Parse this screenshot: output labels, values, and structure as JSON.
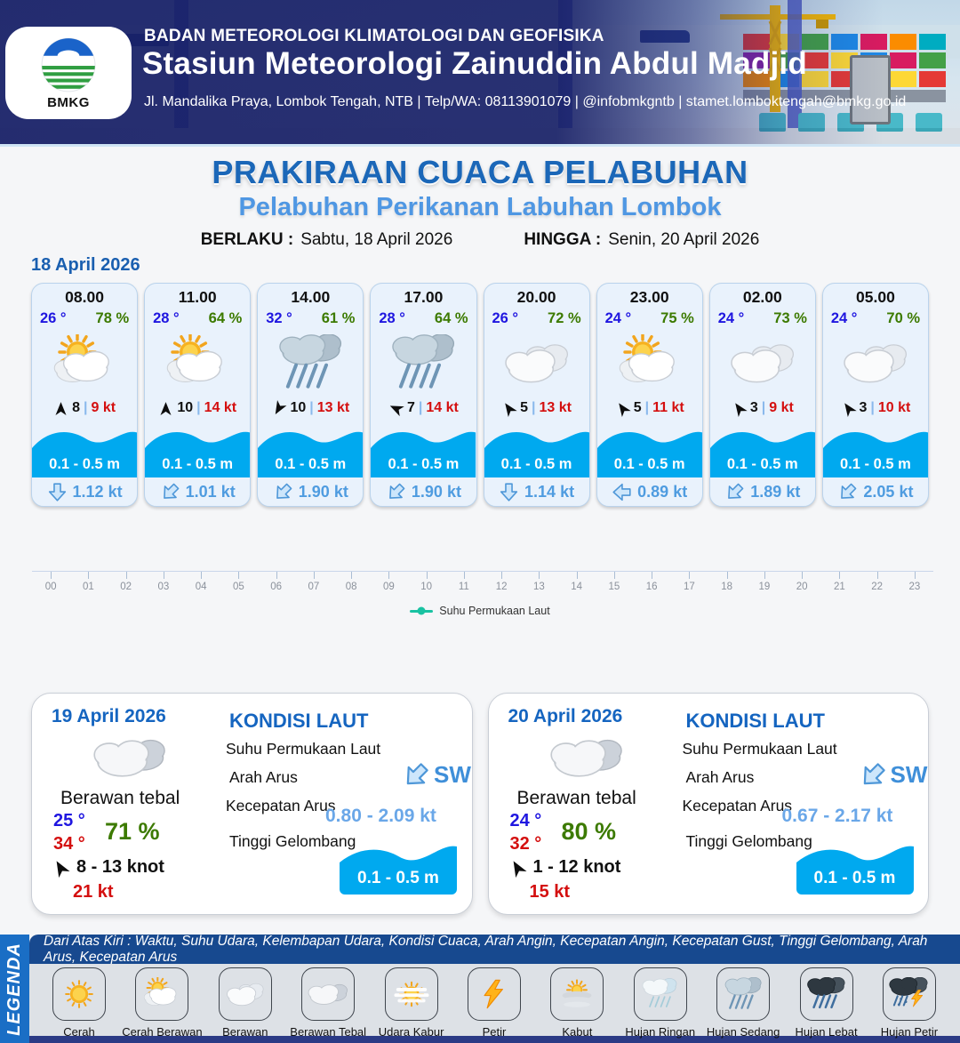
{
  "header": {
    "org": "BADAN METEOROLOGI KLIMATOLOGI DAN GEOFISIKA",
    "station": "Stasiun Meteorologi Zainuddin Abdul Madjid",
    "address": "Jl. Mandalika Praya, Lombok Tengah, NTB | Telp/WA: 08113901079 | @infobmkgntb | stamet.lomboktengah@bmkg.go.id",
    "logo_text": "BMKG"
  },
  "title": {
    "main": "PRAKIRAAN CUACA PELABUHAN",
    "subtitle": "Pelabuhan Perikanan Labuhan Lombok",
    "berlaku_label": "BERLAKU :",
    "berlaku_value": "Sabtu, 18 April 2026",
    "hingga_label": "HINGGA :",
    "hingga_value": "Senin, 20 April 2026"
  },
  "forecast": {
    "date": "18 April 2026",
    "sep": "|",
    "cards": [
      {
        "time": "08.00",
        "temp": "26 °",
        "humidity": "78 %",
        "icon": "cerah-berawan",
        "wind_speed": "8",
        "gust": "9 kt",
        "wind_dir_deg": 0,
        "wave": "0.1 - 0.5 m",
        "current": "1.12 kt",
        "current_dir_deg": 0
      },
      {
        "time": "11.00",
        "temp": "28 °",
        "humidity": "64 %",
        "icon": "cerah-berawan",
        "wind_speed": "10",
        "gust": "14 kt",
        "wind_dir_deg": 0,
        "wave": "0.1 - 0.5 m",
        "current": "1.01 kt",
        "current_dir_deg": 45
      },
      {
        "time": "14.00",
        "temp": "32 °",
        "humidity": "61 %",
        "icon": "hujan-sedang",
        "wind_speed": "10",
        "gust": "13 kt",
        "wind_dir_deg": 210,
        "wave": "0.1 - 0.5 m",
        "current": "1.90 kt",
        "current_dir_deg": 45
      },
      {
        "time": "17.00",
        "temp": "28 °",
        "humidity": "64 %",
        "icon": "hujan-sedang",
        "wind_speed": "7",
        "gust": "14 kt",
        "wind_dir_deg": 295,
        "wave": "0.1 - 0.5 m",
        "current": "1.90 kt",
        "current_dir_deg": 45
      },
      {
        "time": "20.00",
        "temp": "26 °",
        "humidity": "72 %",
        "icon": "berawan",
        "wind_speed": "5",
        "gust": "13 kt",
        "wind_dir_deg": 325,
        "wave": "0.1 - 0.5 m",
        "current": "1.14 kt",
        "current_dir_deg": 0
      },
      {
        "time": "23.00",
        "temp": "24 °",
        "humidity": "75 %",
        "icon": "cerah-berawan",
        "wind_speed": "5",
        "gust": "11 kt",
        "wind_dir_deg": 325,
        "wave": "0.1 - 0.5 m",
        "current": "0.89 kt",
        "current_dir_deg": 90
      },
      {
        "time": "02.00",
        "temp": "24 °",
        "humidity": "73 %",
        "icon": "berawan",
        "wind_speed": "3",
        "gust": "9 kt",
        "wind_dir_deg": 325,
        "wave": "0.1 - 0.5 m",
        "current": "1.89 kt",
        "current_dir_deg": 45
      },
      {
        "time": "05.00",
        "temp": "24 °",
        "humidity": "70 %",
        "icon": "berawan",
        "wind_speed": "3",
        "gust": "10 kt",
        "wind_dir_deg": 325,
        "wave": "0.1 - 0.5 m",
        "current": "2.05 kt",
        "current_dir_deg": 45
      }
    ]
  },
  "timeline": {
    "hours": [
      "00",
      "01",
      "02",
      "03",
      "04",
      "05",
      "06",
      "07",
      "08",
      "09",
      "10",
      "11",
      "12",
      "13",
      "14",
      "15",
      "16",
      "17",
      "18",
      "19",
      "20",
      "21",
      "22",
      "23"
    ],
    "legend": "Suhu Permukaan Laut"
  },
  "days": [
    {
      "date": "19 April 2026",
      "condition": "Berawan tebal",
      "icon": "berawan-tebal",
      "temp_min": "25 °",
      "temp_max": "34 °",
      "humidity": "71 %",
      "wind": "8  - 13 knot",
      "gust": "21 kt",
      "wind_dir_deg": 330,
      "sea": {
        "title": "KONDISI LAUT",
        "sst_label": "Suhu Permukaan Laut",
        "arah_label": "Arah Arus",
        "arah_value": "SW",
        "arah_deg": 45,
        "kec_label": "Kecepatan Arus",
        "kec_value": "0.80  - 2.09 kt",
        "gel_label": "Tinggi Gelombang",
        "gel_value": "0.1 - 0.5 m"
      }
    },
    {
      "date": "20 April 2026",
      "condition": "Berawan tebal",
      "icon": "berawan-tebal",
      "temp_min": "24 °",
      "temp_max": "32 °",
      "humidity": "80 %",
      "wind": "1  - 12 knot",
      "gust": "15 kt",
      "wind_dir_deg": 330,
      "sea": {
        "title": "KONDISI LAUT",
        "sst_label": "Suhu Permukaan Laut",
        "arah_label": "Arah Arus",
        "arah_value": "SW",
        "arah_deg": 45,
        "kec_label": "Kecepatan Arus",
        "kec_value": "0.67  - 2.17 kt",
        "gel_label": "Tinggi Gelombang",
        "gel_value": "0.1 - 0.5 m"
      }
    }
  ],
  "legend": {
    "title": "LEGENDA",
    "note": "Dari Atas Kiri : Waktu, Suhu Udara, Kelembapan Udara, Kondisi Cuaca, Arah Angin, Kecepatan Angin, Kecepatan Gust, Tinggi Gelombang, Arah Arus, Kecepatan Arus",
    "items": [
      {
        "label": "Cerah",
        "icon": "cerah"
      },
      {
        "label": "Cerah Berawan",
        "icon": "cerah-berawan"
      },
      {
        "label": "Berawan",
        "icon": "berawan"
      },
      {
        "label": "Berawan Tebal",
        "icon": "berawan-tebal"
      },
      {
        "label": "Udara Kabur",
        "icon": "udara-kabur"
      },
      {
        "label": "Petir",
        "icon": "petir"
      },
      {
        "label": "Kabut",
        "icon": "kabut"
      },
      {
        "label": "Hujan Ringan",
        "icon": "hujan-ringan"
      },
      {
        "label": "Hujan Sedang",
        "icon": "hujan-sedang"
      },
      {
        "label": "Hujan Lebat",
        "icon": "hujan-lebat"
      },
      {
        "label": "Hujan Petir",
        "icon": "hujan-petir"
      }
    ]
  },
  "colors": {
    "title_blue": "#1b67b8",
    "subtitle_blue": "#4f97e3",
    "wave_cyan": "#00a9ef",
    "temp_blue": "#1f16e0",
    "humidity_green": "#3c7a00",
    "gust_red": "#d40f0f",
    "current_blue": "#4f9ce0",
    "sst_teal": "#19c2a2",
    "legend_navy": "#17498f",
    "legend_blue": "#1a6ec5"
  }
}
